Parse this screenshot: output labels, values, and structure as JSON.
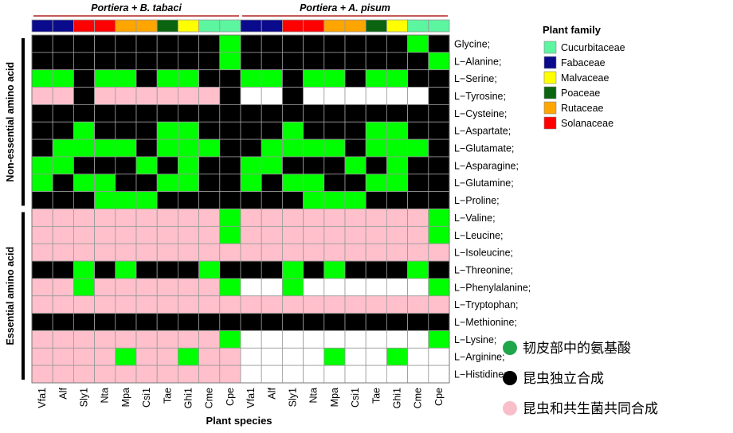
{
  "chart_data": {
    "type": "heatmap",
    "groups": [
      {
        "label": "Portiera + B. tabaci",
        "columns": 10
      },
      {
        "label": "Portiera + A. pisum",
        "columns": 10
      }
    ],
    "columns": [
      "Vfa1",
      "Alf",
      "Sly1",
      "Nta",
      "Mpa",
      "Csi1",
      "Tae",
      "Ghi1",
      "Cme",
      "Cpe",
      "Vfa1",
      "Alf",
      "Sly1",
      "Nta",
      "Mpa",
      "Csi1",
      "Tae",
      "Ghi1",
      "Cme",
      "Cpe"
    ],
    "column_families": [
      "Fabaceae",
      "Fabaceae",
      "Solanaceae",
      "Solanaceae",
      "Rutaceae",
      "Rutaceae",
      "Poaceae",
      "Malvaceae",
      "Cucurbitaceae",
      "Cucurbitaceae",
      "Fabaceae",
      "Fabaceae",
      "Solanaceae",
      "Solanaceae",
      "Rutaceae",
      "Rutaceae",
      "Poaceae",
      "Malvaceae",
      "Cucurbitaceae",
      "Cucurbitaceae"
    ],
    "rows": [
      "Glycine;",
      "L−Alanine;",
      "L−Serine;",
      "L−Tyrosine;",
      "L−Cysteine;",
      "L−Aspartate;",
      "L−Glutamate;",
      "L−Asparagine;",
      "L−Glutamine;",
      "L−Proline;",
      "L−Valine;",
      "L−Leucine;",
      "L−Isoleucine;",
      "L−Threonine;",
      "L−Phenylalanine;",
      "L−Tryptophan;",
      "L−Methionine;",
      "L−Lysine;",
      "L−Arginine;",
      "L−Histidine;"
    ],
    "row_groups": [
      {
        "label": "Non-essential amino acid",
        "rows": 10
      },
      {
        "label": "Essential amino acid",
        "rows": 10
      }
    ],
    "value_codes": {
      "G": "green",
      "K": "black",
      "P": "pink",
      "W": "white"
    },
    "values": [
      "KKKKKKKKKGKKKKKKKKGK",
      "KKKKKKKKKGKKKKKKKKKG",
      "GGKGGKGGKKGGKGGKGGKK",
      "PPKPPPPPPKWWKWWWWWWK",
      "KKKKKKKKKKKKKKKKKKKK",
      "KKGKKKGGKKKKGKKKGGKK",
      "KGGGGKGGGKKGGGGKGGGK",
      "GGKKKGKGKKGGKKKGKGKK",
      "GKGGKKGGKKGKGGKKGGKK",
      "KKKGGGKKKKKKKGGGKKKK",
      "PPPPPPPPPGPPPPPPPPPG",
      "PPPPPPPPPGPPPPPPPPPG",
      "PPPPPPPPPPPPPPPPPPPP",
      "KKGKGKKKGKKKGKGKKKGK",
      "PPGPPPPPPGWWGWWWWWWG",
      "PPPPPPPPPPPPPPPPPPPP",
      "KKKKKKKKKKKKKKKKKKKK",
      "PPPPPPPPPGWWWWWWWWWG",
      "PPPPGPPGPPWWWWGWWGWW",
      "PPPPPPPPPPWWWWWWWWWW"
    ],
    "xlabel": "Plant species",
    "legend": {
      "title": "Plant family",
      "placement": "right",
      "items": [
        {
          "label": "Cucurbitaceae",
          "color": "#5CF5A0"
        },
        {
          "label": "Fabaceae",
          "color": "#0A0A8C"
        },
        {
          "label": "Malvaceae",
          "color": "#FFFF00"
        },
        {
          "label": "Poaceae",
          "color": "#0A6410"
        },
        {
          "label": "Rutaceae",
          "color": "#FFA500"
        },
        {
          "label": "Solanaceae",
          "color": "#FF0000"
        }
      ]
    },
    "annotations": [
      {
        "label": "韧皮部中的氨基酸",
        "color": "#1FA64A"
      },
      {
        "label": "昆虫独立合成",
        "color": "#000000"
      },
      {
        "label": "昆虫和共生菌共同合成",
        "color": "#F8BFCB"
      }
    ]
  },
  "colors": {
    "green": "#00FF00",
    "black": "#000000",
    "pink": "#FFC0CB",
    "white": "#FFFFFF",
    "grid": "#9A9A9A",
    "bracket": "#B22222"
  }
}
